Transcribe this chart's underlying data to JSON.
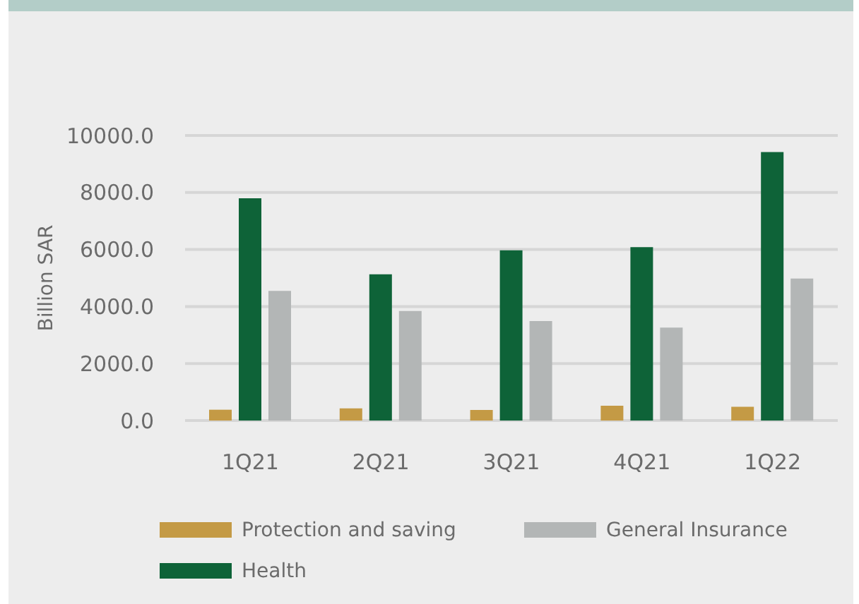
{
  "chart_data": {
    "type": "bar",
    "ylabel": "Billion SAR",
    "categories": [
      "1Q21",
      "2Q21",
      "3Q21",
      "4Q21",
      "1Q22"
    ],
    "series": [
      {
        "name": "Protection and saving",
        "color": "#c49a45",
        "values": [
          380,
          430,
          370,
          520,
          480
        ]
      },
      {
        "name": "Health",
        "color": "#0e6338",
        "values": [
          7800,
          5130,
          5970,
          6080,
          9420
        ]
      },
      {
        "name": "General Insurance",
        "color": "#b3b6b6",
        "values": [
          4550,
          3840,
          3490,
          3260,
          4980
        ]
      }
    ],
    "ylim": [
      0,
      10000
    ],
    "yticks": [
      {
        "value": 0,
        "label": "0.0"
      },
      {
        "value": 2000,
        "label": "2000.0"
      },
      {
        "value": 4000,
        "label": "4000.0"
      },
      {
        "value": 6000,
        "label": "6000.0"
      },
      {
        "value": 8000,
        "label": "8000.0"
      },
      {
        "value": 10000,
        "label": "10000.0"
      }
    ],
    "grid": "y",
    "legend": "bottom"
  }
}
